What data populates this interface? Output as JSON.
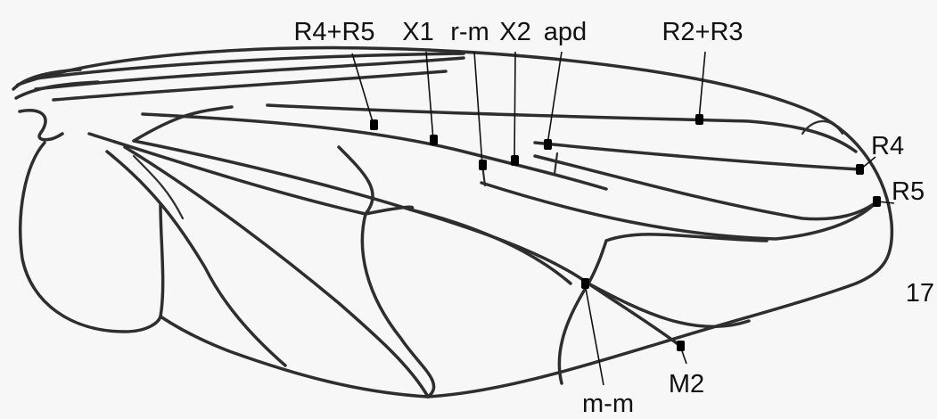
{
  "figure_number": "17",
  "landmarks": [
    {
      "label": "R4+R5"
    },
    {
      "label": "X1"
    },
    {
      "label": "r-m"
    },
    {
      "label": "X2"
    },
    {
      "label": "apd"
    },
    {
      "label": "R2+R3"
    },
    {
      "label": "R4"
    },
    {
      "label": "R5"
    },
    {
      "label": "m-m"
    },
    {
      "label": "M2"
    }
  ]
}
